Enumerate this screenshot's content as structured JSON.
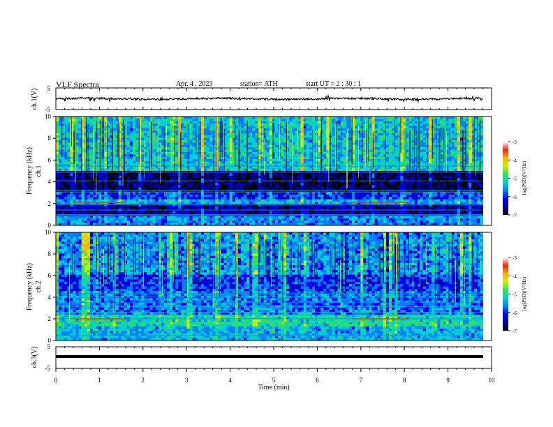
{
  "header": {
    "title": "VLF  Spectra",
    "date": "Apr. 4 , 2023",
    "station": "station= ATH",
    "start": "start  UT  =   2  : 30 : 1"
  },
  "colors": {
    "waveform": "#000000",
    "colormap": [
      "#000000",
      "#0000a0",
      "#0000ff",
      "#0080ff",
      "#00d0d0",
      "#30e060",
      "#c8f000",
      "#ffb000",
      "#ff2000",
      "#ffffff"
    ]
  },
  "chart_data": [
    {
      "type": "line",
      "ylabel": "ch.1(V)",
      "ylim": [
        -5,
        5
      ],
      "y_ticks": [
        "5",
        "-5"
      ],
      "xlim": [
        0,
        10
      ],
      "series": [
        {
          "trace": "noisy waveform near 0 V",
          "approx_values_V": [
            -0.3,
            0.2
          ]
        }
      ]
    },
    {
      "type": "heatmap",
      "channel_label": "ch.1",
      "ylabel": "Frequency  (kHz)",
      "ylim": [
        0,
        10
      ],
      "y_ticks": [
        "0",
        "2",
        "4",
        "6",
        "8",
        "10"
      ],
      "xlim": [
        0,
        9.8
      ],
      "colorbar": {
        "label": "log(PSD)(V²/Hz)",
        "range": [
          -7,
          -3
        ],
        "ticks": [
          "-3",
          "-4",
          "-5",
          "-6",
          "-7"
        ]
      },
      "bands": [
        {
          "from_kHz": 0,
          "to_kHz": 0.8,
          "level": -5.2
        },
        {
          "from_kHz": 0.8,
          "to_kHz": 1.9,
          "level": -6.2
        },
        {
          "from_kHz": 1.9,
          "to_kHz": 2.3,
          "level": -5.0
        },
        {
          "from_kHz": 2.3,
          "to_kHz": 3.0,
          "level": -5.6
        },
        {
          "from_kHz": 3.0,
          "to_kHz": 5.0,
          "level": -6.5
        },
        {
          "from_kHz": 5.0,
          "to_kHz": 10,
          "level": -4.8
        }
      ],
      "tone_lines_kHz": [
        2.1
      ],
      "tone_segments_min": [
        [
          0.4,
          1.6
        ],
        [
          6.8,
          8.1
        ]
      ]
    },
    {
      "type": "heatmap",
      "channel_label": "ch.2",
      "ylabel": "Frequency  (kHz)",
      "ylim": [
        0,
        10
      ],
      "y_ticks": [
        "0",
        "2",
        "4",
        "6",
        "8",
        "10"
      ],
      "xlim": [
        0,
        9.8
      ],
      "colorbar": {
        "label": "log(PSD)(V²/Hz)",
        "range": [
          -7,
          -3
        ],
        "ticks": [
          "-3",
          "-4",
          "-5",
          "-6",
          "-7"
        ]
      },
      "bands": [
        {
          "from_kHz": 0,
          "to_kHz": 1.2,
          "level": -5.0
        },
        {
          "from_kHz": 1.2,
          "to_kHz": 2.5,
          "level": -4.6
        },
        {
          "from_kHz": 2.5,
          "to_kHz": 4.5,
          "level": -5.3
        },
        {
          "from_kHz": 4.5,
          "to_kHz": 6.0,
          "level": -5.6
        },
        {
          "from_kHz": 6.0,
          "to_kHz": 10,
          "level": -5.1
        }
      ],
      "tone_lines_kHz": [
        2.0
      ],
      "tone_segments_min": [
        [
          0.4,
          1.6
        ],
        [
          6.8,
          8.1
        ]
      ]
    },
    {
      "type": "line",
      "ylabel": "ch.3(V)",
      "ylim": [
        -5,
        5
      ],
      "y_ticks": [
        "5",
        "-5"
      ],
      "xlim": [
        0,
        10
      ],
      "xlabel": "Time  (min)",
      "x_ticks": [
        "0",
        "1",
        "2",
        "3",
        "4",
        "5",
        "6",
        "7",
        "8",
        "9",
        "10"
      ],
      "series": [
        {
          "trace": "flat thick trace",
          "approx_values_V": [
            -1.0,
            -1.0
          ]
        }
      ]
    }
  ]
}
